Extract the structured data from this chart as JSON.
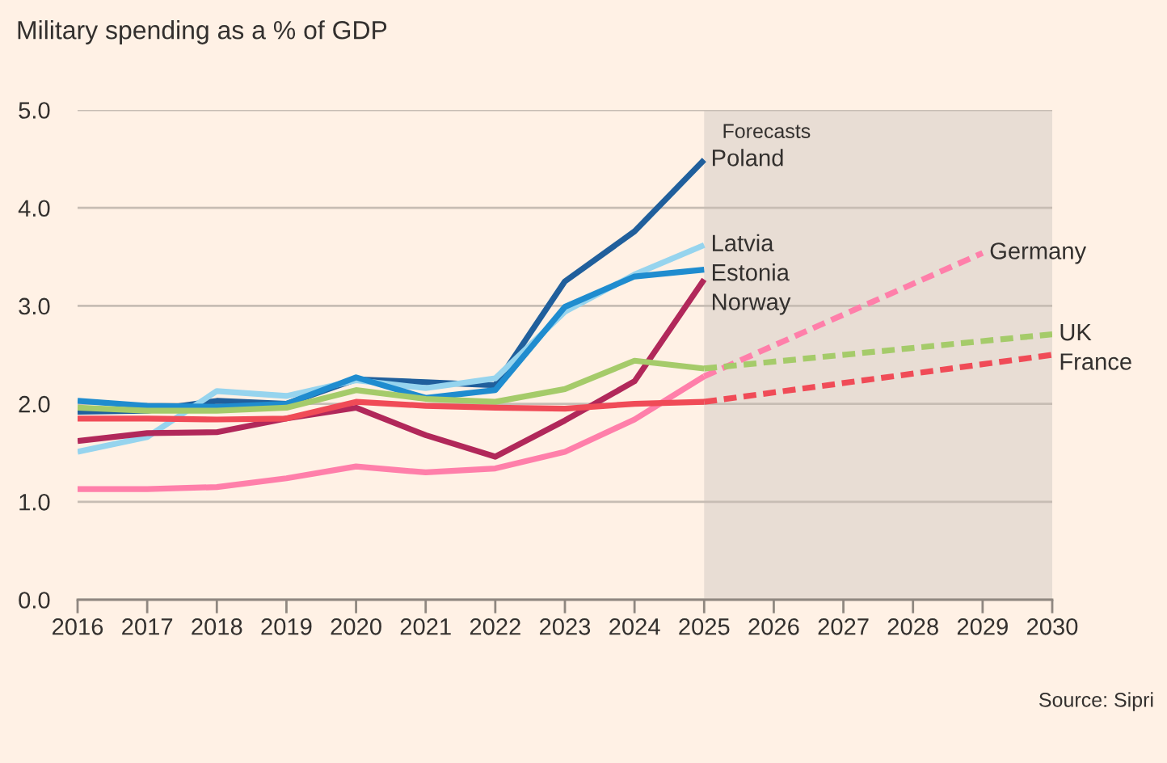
{
  "chart_data": {
    "type": "line",
    "title": "Military spending as a % of GDP",
    "x": [
      2016,
      2017,
      2018,
      2019,
      2020,
      2021,
      2022,
      2023,
      2024,
      2025
    ],
    "series": [
      {
        "name": "Poland",
        "color": "#205f9c",
        "values": [
          1.92,
          1.93,
          2.03,
          2.0,
          2.25,
          2.22,
          2.19,
          3.25,
          3.76,
          4.49
        ]
      },
      {
        "name": "Latvia",
        "color": "#96d4ee",
        "values": [
          1.51,
          1.66,
          2.13,
          2.08,
          2.24,
          2.16,
          2.26,
          2.94,
          3.32,
          3.62
        ]
      },
      {
        "name": "Estonia",
        "color": "#1f8ccf",
        "values": [
          2.03,
          1.98,
          1.97,
          2.0,
          2.27,
          2.06,
          2.14,
          2.99,
          3.3,
          3.37
        ]
      },
      {
        "name": "Norway",
        "color": "#b1285a",
        "values": [
          1.62,
          1.7,
          1.71,
          1.85,
          1.96,
          1.68,
          1.46,
          1.83,
          2.23,
          3.27
        ]
      },
      {
        "color": "#ff7faa",
        "values": [
          1.13,
          1.13,
          1.15,
          1.24,
          1.36,
          1.3,
          1.34,
          1.51,
          1.84,
          2.28
        ]
      },
      {
        "color": "#a5cb6a",
        "values": [
          1.96,
          1.93,
          1.93,
          1.96,
          2.14,
          2.05,
          2.02,
          2.15,
          2.44,
          2.36
        ]
      },
      {
        "color": "#f04b57",
        "values": [
          1.85,
          1.85,
          1.84,
          1.85,
          2.02,
          1.98,
          1.96,
          1.95,
          2.0,
          2.02
        ]
      },
      {
        "name": "Germany",
        "color": "#ff7faa",
        "line_style": "dashed",
        "x": [
          2025,
          2029
        ],
        "values": [
          2.28,
          3.54
        ]
      },
      {
        "name": "UK",
        "color": "#a5cb6a",
        "line_style": "dashed",
        "x": [
          2025,
          2030
        ],
        "values": [
          2.36,
          2.71
        ]
      },
      {
        "name": "France",
        "color": "#f04b57",
        "line_style": "dashed",
        "x": [
          2025,
          2030
        ],
        "values": [
          2.02,
          2.5
        ]
      }
    ],
    "xlim": [
      2016,
      2030
    ],
    "xticks": [
      2016,
      2017,
      2018,
      2019,
      2020,
      2021,
      2022,
      2023,
      2024,
      2025,
      2026,
      2027,
      2028,
      2029,
      2030
    ],
    "ylim": [
      0,
      5
    ],
    "yticks": [
      {
        "value": 0,
        "label": "0.0"
      },
      {
        "value": 1,
        "label": "1.0"
      },
      {
        "value": 2,
        "label": "2.0"
      },
      {
        "value": 3,
        "label": "3.0"
      },
      {
        "value": 4,
        "label": "4.0"
      },
      {
        "value": 5,
        "label": "5.0"
      }
    ],
    "bands": [
      {
        "axis": "x",
        "from": 2025,
        "to": 2030,
        "label": "Forecasts",
        "color": "#e8ddd4"
      }
    ],
    "grid": "y",
    "legend": false,
    "marker": "none",
    "line_style": "solid",
    "annotations": [
      "Source: Sipri"
    ]
  }
}
